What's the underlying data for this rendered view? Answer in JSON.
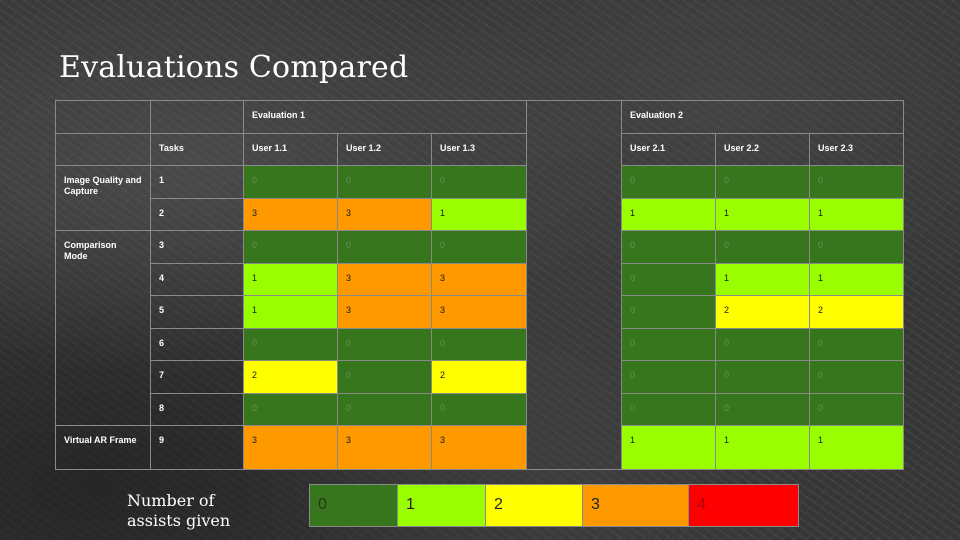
{
  "title": "Evaluations Compared",
  "table": {
    "evaluation1": "Evaluation 1",
    "evaluation2": "Evaluation 2",
    "tasks_header": "Tasks",
    "users1": [
      "User 1.1",
      "User 1.2",
      "User 1.3"
    ],
    "users2": [
      "User 2.1",
      "User 2.2",
      "User 2.3"
    ],
    "rows": [
      {
        "group": "Image Quality and Capture",
        "task": "1",
        "e1": [
          0,
          0,
          0
        ],
        "e2": [
          0,
          0,
          0
        ]
      },
      {
        "group": "",
        "task": "2",
        "e1": [
          3,
          3,
          1
        ],
        "e2": [
          1,
          1,
          1
        ]
      },
      {
        "group": "Comparison Mode",
        "task": "3",
        "e1": [
          0,
          0,
          0
        ],
        "e2": [
          0,
          0,
          0
        ]
      },
      {
        "group": "",
        "task": "4",
        "e1": [
          1,
          3,
          3
        ],
        "e2": [
          0,
          1,
          1
        ]
      },
      {
        "group": "",
        "task": "5",
        "e1": [
          1,
          3,
          3
        ],
        "e2": [
          0,
          2,
          2
        ]
      },
      {
        "group": "",
        "task": "6",
        "e1": [
          0,
          0,
          0
        ],
        "e2": [
          0,
          0,
          0
        ]
      },
      {
        "group": "",
        "task": "7",
        "e1": [
          2,
          0,
          2
        ],
        "e2": [
          0,
          0,
          0
        ]
      },
      {
        "group": "",
        "task": "8",
        "e1": [
          0,
          0,
          0
        ],
        "e2": [
          0,
          0,
          0
        ]
      },
      {
        "group": "Virtual AR Frame",
        "task": "9",
        "e1": [
          3,
          3,
          3
        ],
        "e2": [
          1,
          1,
          1
        ]
      }
    ]
  },
  "legend": {
    "label": "Number of assists given",
    "items": [
      {
        "value": "0",
        "color": "#38761d",
        "text_color": "#1e3d10"
      },
      {
        "value": "1",
        "color": "#99ff00",
        "text_color": "#222222"
      },
      {
        "value": "2",
        "color": "#ffff00",
        "text_color": "#222222"
      },
      {
        "value": "3",
        "color": "#ff9900",
        "text_color": "#222222"
      },
      {
        "value": "4",
        "color": "#ff0000",
        "text_color": "#b30000"
      }
    ]
  },
  "colors": {
    "0": "#38761d",
    "1": "#99ff00",
    "2": "#ffff00",
    "3": "#ff9900",
    "4": "#ff0000"
  }
}
